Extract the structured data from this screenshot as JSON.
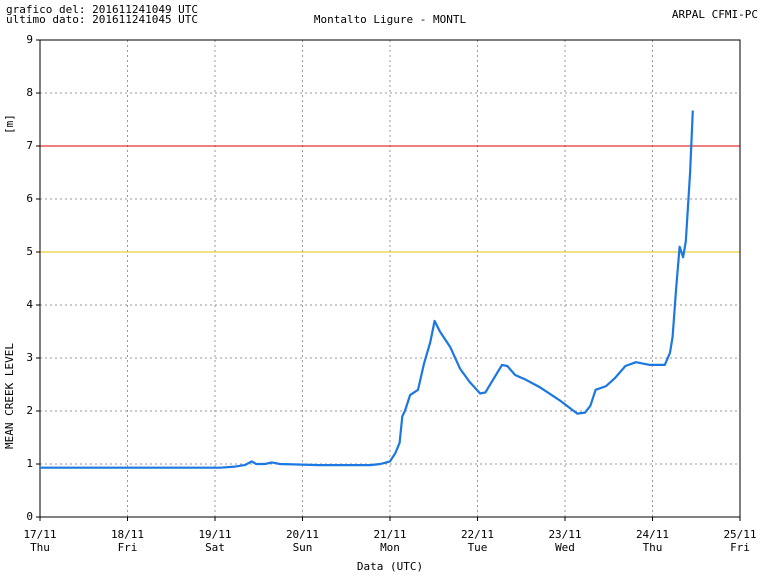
{
  "chart_data": {
    "type": "line",
    "header_left": [
      "grafico del: 201611241049 UTC",
      "ultimo dato: 201611241045 UTC"
    ],
    "title": "Montalto Ligure - MONTL",
    "header_right": "ARPAL CFMI-PC",
    "y_unit": "[m]",
    "ylabel": "MEAN CREEK LEVEL",
    "xlabel": "Data (UTC)",
    "xlim": [
      0,
      8
    ],
    "ylim": [
      0,
      9
    ],
    "yticks": [
      0,
      1,
      2,
      3,
      4,
      5,
      6,
      7,
      8,
      9
    ],
    "xticks": [
      {
        "value": 0,
        "label": "17/11"
      },
      {
        "value": 1,
        "label": "18/11"
      },
      {
        "value": 2,
        "label": "19/11"
      },
      {
        "value": 3,
        "label": "20/11"
      },
      {
        "value": 4,
        "label": "21/11"
      },
      {
        "value": 5,
        "label": "22/11"
      },
      {
        "value": 6,
        "label": "23/11"
      },
      {
        "value": 7,
        "label": "24/11"
      },
      {
        "value": 8,
        "label": "25/11"
      }
    ],
    "xtick_weekdays": [
      "Thu",
      "Fri",
      "Sat",
      "Sun",
      "Mon",
      "Tue",
      "Wed",
      "Thu",
      "Fri"
    ],
    "grid": true,
    "thresholds": [
      {
        "value": 7,
        "color": "#e00000"
      },
      {
        "value": 5,
        "color": "#e8c000"
      }
    ],
    "series": [
      {
        "color": "#1a78e0",
        "x": [
          0,
          2.06,
          2.23,
          2.34,
          2.42,
          2.47,
          2.57,
          2.65,
          2.74,
          3.2,
          3.77,
          3.89,
          4.0,
          4.06,
          4.11,
          4.14,
          4.17,
          4.23,
          4.32,
          4.39,
          4.46,
          4.51,
          4.57,
          4.69,
          4.8,
          4.91,
          5.03,
          5.09,
          5.2,
          5.28,
          5.34,
          5.43,
          5.54,
          5.71,
          5.94,
          6.06,
          6.14,
          6.23,
          6.29,
          6.35,
          6.47,
          6.57,
          6.69,
          6.81,
          6.97,
          7.14,
          7.2,
          7.23,
          7.27,
          7.31,
          7.35,
          7.38,
          7.43,
          7.46
        ],
        "values": [
          0.93,
          0.93,
          0.95,
          0.98,
          1.05,
          1.0,
          1.0,
          1.03,
          1.0,
          0.98,
          0.98,
          1.0,
          1.05,
          1.2,
          1.4,
          1.9,
          2.0,
          2.3,
          2.4,
          2.9,
          3.3,
          3.7,
          3.5,
          3.2,
          2.8,
          2.55,
          2.33,
          2.35,
          2.65,
          2.87,
          2.85,
          2.68,
          2.6,
          2.45,
          2.2,
          2.05,
          1.95,
          1.97,
          2.1,
          2.4,
          2.47,
          2.62,
          2.85,
          2.92,
          2.87,
          2.87,
          3.1,
          3.4,
          4.3,
          5.1,
          4.9,
          5.2,
          6.5,
          7.67
        ]
      }
    ]
  }
}
